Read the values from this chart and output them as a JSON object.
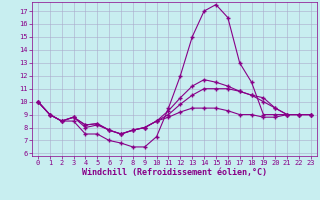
{
  "xlabel": "Windchill (Refroidissement éolien,°C)",
  "bg_color": "#c8eef0",
  "line_color": "#880088",
  "grid_color": "#aaaacc",
  "xlim": [
    -0.5,
    23.5
  ],
  "ylim": [
    5.8,
    17.7
  ],
  "xticks": [
    0,
    1,
    2,
    3,
    4,
    5,
    6,
    7,
    8,
    9,
    10,
    11,
    12,
    13,
    14,
    15,
    16,
    17,
    18,
    19,
    20,
    21,
    22,
    23
  ],
  "yticks": [
    6,
    7,
    8,
    9,
    10,
    11,
    12,
    13,
    14,
    15,
    16,
    17
  ],
  "line1_x": [
    0,
    1,
    2,
    3,
    4,
    5,
    6,
    7,
    8,
    9,
    10,
    11,
    12,
    13,
    14,
    15,
    16,
    17,
    18,
    19,
    20,
    21,
    22,
    23
  ],
  "line1_y": [
    10,
    9,
    8.5,
    8.5,
    7.5,
    7.5,
    7,
    6.8,
    6.5,
    6.5,
    7.3,
    9.5,
    12,
    15,
    17,
    17.5,
    16.5,
    13,
    11.5,
    9,
    9,
    9,
    9,
    9
  ],
  "line2_x": [
    0,
    1,
    2,
    3,
    4,
    5,
    6,
    7,
    8,
    9,
    10,
    11,
    12,
    13,
    14,
    15,
    16,
    17,
    18,
    19,
    20,
    21,
    22,
    23
  ],
  "line2_y": [
    10,
    9,
    8.5,
    8.8,
    8,
    8.2,
    7.8,
    7.5,
    7.8,
    8,
    8.5,
    9.3,
    10.3,
    11.2,
    11.7,
    11.5,
    11.2,
    10.8,
    10.5,
    10.3,
    9.5,
    9,
    9,
    9
  ],
  "line3_x": [
    0,
    1,
    2,
    3,
    4,
    5,
    6,
    7,
    8,
    9,
    10,
    11,
    12,
    13,
    14,
    15,
    16,
    17,
    18,
    19,
    20,
    21,
    22,
    23
  ],
  "line3_y": [
    10,
    9,
    8.5,
    8.8,
    8.2,
    8.3,
    7.8,
    7.5,
    7.8,
    8,
    8.5,
    9,
    9.8,
    10.5,
    11,
    11,
    11,
    10.8,
    10.5,
    10,
    9.5,
    9,
    9,
    9
  ],
  "line4_x": [
    0,
    1,
    2,
    3,
    4,
    5,
    6,
    7,
    8,
    9,
    10,
    11,
    12,
    13,
    14,
    15,
    16,
    17,
    18,
    19,
    20,
    21,
    22,
    23
  ],
  "line4_y": [
    10,
    9,
    8.5,
    8.8,
    8.2,
    8.3,
    7.8,
    7.5,
    7.8,
    8,
    8.5,
    8.8,
    9.2,
    9.5,
    9.5,
    9.5,
    9.3,
    9,
    9,
    8.8,
    8.8,
    9,
    9,
    9
  ],
  "marker": "+",
  "markersize": 3.0,
  "linewidth": 0.8,
  "tick_fontsize": 5.0,
  "xlabel_fontsize": 6.0
}
